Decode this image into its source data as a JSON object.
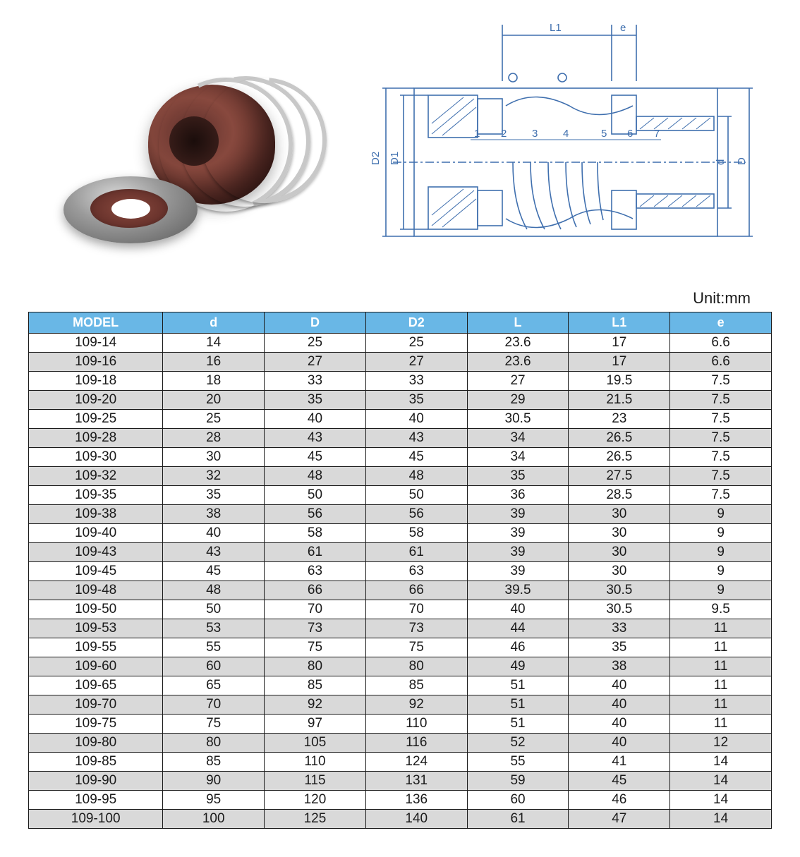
{
  "unit_label": "Unit:mm",
  "diagram": {
    "dim_labels": {
      "L1": "L1",
      "e": "e",
      "D2": "D2",
      "D1": "D1",
      "d": "d",
      "D": "D"
    },
    "part_numbers": [
      "1",
      "2",
      "3",
      "4",
      "5",
      "6",
      "7"
    ],
    "line_color": "#3f6fae",
    "hatch_color": "#3f6fae",
    "bg_color": "#ffffff"
  },
  "product_illustration": {
    "body_color": "#8a4a3f",
    "body_dark": "#3a1e1a",
    "spring_color": "#c8c8c8",
    "ring_metal": "#9a9a9a"
  },
  "table": {
    "header_bg": "#69b7e6",
    "header_fg": "#ffffff",
    "row_alt_bg": "#d9d9d9",
    "row_bg": "#ffffff",
    "border_color": "#1a1a1a",
    "font_size": 19,
    "columns": [
      "MODEL",
      "d",
      "D",
      "D2",
      "L",
      "L1",
      "e"
    ],
    "rows": [
      [
        "109-14",
        "14",
        "25",
        "25",
        "23.6",
        "17",
        "6.6"
      ],
      [
        "109-16",
        "16",
        "27",
        "27",
        "23.6",
        "17",
        "6.6"
      ],
      [
        "109-18",
        "18",
        "33",
        "33",
        "27",
        "19.5",
        "7.5"
      ],
      [
        "109-20",
        "20",
        "35",
        "35",
        "29",
        "21.5",
        "7.5"
      ],
      [
        "109-25",
        "25",
        "40",
        "40",
        "30.5",
        "23",
        "7.5"
      ],
      [
        "109-28",
        "28",
        "43",
        "43",
        "34",
        "26.5",
        "7.5"
      ],
      [
        "109-30",
        "30",
        "45",
        "45",
        "34",
        "26.5",
        "7.5"
      ],
      [
        "109-32",
        "32",
        "48",
        "48",
        "35",
        "27.5",
        "7.5"
      ],
      [
        "109-35",
        "35",
        "50",
        "50",
        "36",
        "28.5",
        "7.5"
      ],
      [
        "109-38",
        "38",
        "56",
        "56",
        "39",
        "30",
        "9"
      ],
      [
        "109-40",
        "40",
        "58",
        "58",
        "39",
        "30",
        "9"
      ],
      [
        "109-43",
        "43",
        "61",
        "61",
        "39",
        "30",
        "9"
      ],
      [
        "109-45",
        "45",
        "63",
        "63",
        "39",
        "30",
        "9"
      ],
      [
        "109-48",
        "48",
        "66",
        "66",
        "39.5",
        "30.5",
        "9"
      ],
      [
        "109-50",
        "50",
        "70",
        "70",
        "40",
        "30.5",
        "9.5"
      ],
      [
        "109-53",
        "53",
        "73",
        "73",
        "44",
        "33",
        "11"
      ],
      [
        "109-55",
        "55",
        "75",
        "75",
        "46",
        "35",
        "11"
      ],
      [
        "109-60",
        "60",
        "80",
        "80",
        "49",
        "38",
        "11"
      ],
      [
        "109-65",
        "65",
        "85",
        "85",
        "51",
        "40",
        "11"
      ],
      [
        "109-70",
        "70",
        "92",
        "92",
        "51",
        "40",
        "11"
      ],
      [
        "109-75",
        "75",
        "97",
        "110",
        "51",
        "40",
        "11"
      ],
      [
        "109-80",
        "80",
        "105",
        "116",
        "52",
        "40",
        "12"
      ],
      [
        "109-85",
        "85",
        "110",
        "124",
        "55",
        "41",
        "14"
      ],
      [
        "109-90",
        "90",
        "115",
        "131",
        "59",
        "45",
        "14"
      ],
      [
        "109-95",
        "95",
        "120",
        "136",
        "60",
        "46",
        "14"
      ],
      [
        "109-100",
        "100",
        "125",
        "140",
        "61",
        "47",
        "14"
      ]
    ]
  }
}
